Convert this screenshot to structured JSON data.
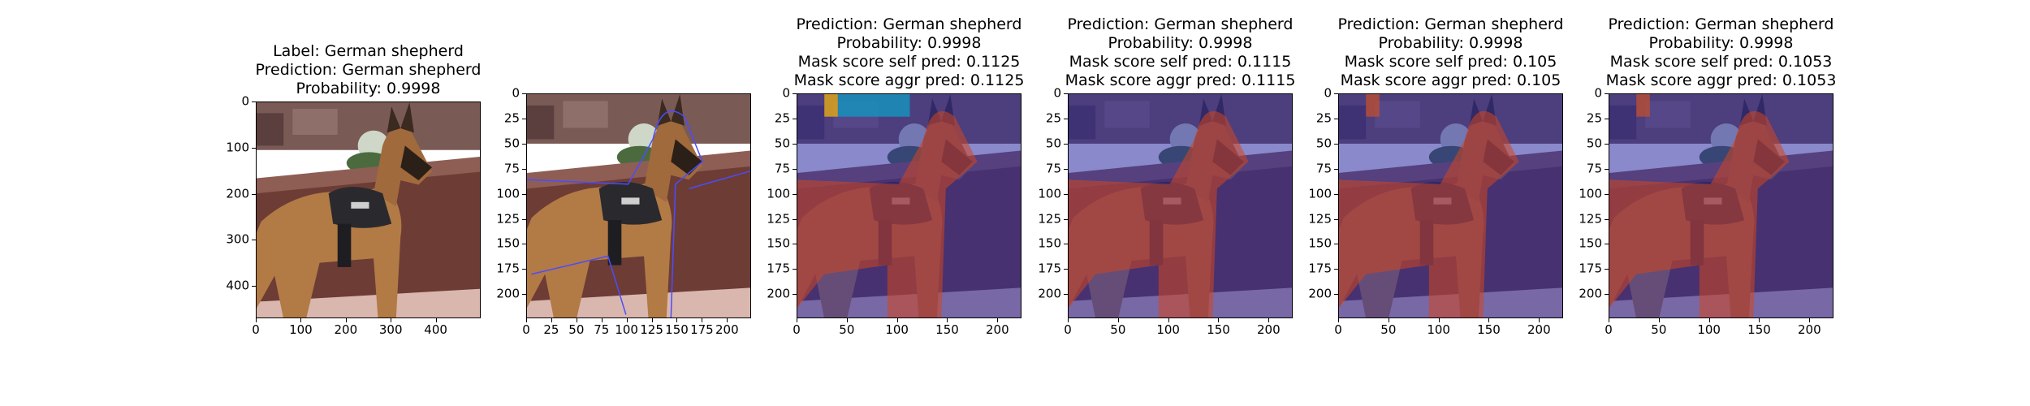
{
  "chart_data": [
    {
      "type": "image",
      "title_lines": [
        "Label: German shepherd",
        "Prediction: German shepherd",
        "Probability: 0.9998"
      ],
      "xticks": [
        "0",
        "100",
        "200",
        "300",
        "400"
      ],
      "yticks": [
        "0",
        "100",
        "200",
        "300",
        "400"
      ],
      "xlim": [
        0,
        500
      ],
      "ylim": [
        0,
        470
      ],
      "overlay": "none"
    },
    {
      "type": "image",
      "title_lines": [],
      "xticks": [
        "0",
        "25",
        "50",
        "75",
        "100",
        "125",
        "150",
        "175",
        "200"
      ],
      "yticks": [
        "0",
        "25",
        "50",
        "75",
        "100",
        "125",
        "150",
        "175",
        "200"
      ],
      "xlim": [
        0,
        224
      ],
      "ylim": [
        0,
        224
      ],
      "overlay": "contour"
    },
    {
      "type": "image",
      "title_lines": [
        "Prediction: German shepherd",
        "Probability: 0.9998",
        "Mask score self pred: 0.1125",
        "Mask score aggr pred: 0.1125"
      ],
      "xticks": [
        "0",
        "50",
        "100",
        "150",
        "200"
      ],
      "yticks": [
        "0",
        "25",
        "50",
        "75",
        "100",
        "125",
        "150",
        "175",
        "200"
      ],
      "xlim": [
        0,
        224
      ],
      "ylim": [
        0,
        224
      ],
      "overlay": "mask-a"
    },
    {
      "type": "image",
      "title_lines": [
        "Prediction: German shepherd",
        "Probability: 0.9998",
        "Mask score self pred: 0.1115",
        "Mask score aggr pred: 0.1115"
      ],
      "xticks": [
        "0",
        "50",
        "100",
        "150",
        "200"
      ],
      "yticks": [
        "0",
        "25",
        "50",
        "75",
        "100",
        "125",
        "150",
        "175",
        "200"
      ],
      "xlim": [
        0,
        224
      ],
      "ylim": [
        0,
        224
      ],
      "overlay": "mask-b"
    },
    {
      "type": "image",
      "title_lines": [
        "Prediction: German shepherd",
        "Probability: 0.9998",
        "Mask score self pred: 0.105",
        "Mask score aggr pred: 0.105"
      ],
      "xticks": [
        "0",
        "50",
        "100",
        "150",
        "200"
      ],
      "yticks": [
        "0",
        "25",
        "50",
        "75",
        "100",
        "125",
        "150",
        "175",
        "200"
      ],
      "xlim": [
        0,
        224
      ],
      "ylim": [
        0,
        224
      ],
      "overlay": "mask-c"
    },
    {
      "type": "image",
      "title_lines": [
        "Prediction: German shepherd",
        "Probability: 0.9998",
        "Mask score self pred: 0.1053",
        "Mask score aggr pred: 0.1053"
      ],
      "xticks": [
        "0",
        "50",
        "100",
        "150",
        "200"
      ],
      "yticks": [
        "0",
        "25",
        "50",
        "75",
        "100",
        "125",
        "150",
        "175",
        "200"
      ],
      "xlim": [
        0,
        224
      ],
      "ylim": [
        0,
        224
      ],
      "overlay": "mask-c"
    }
  ]
}
